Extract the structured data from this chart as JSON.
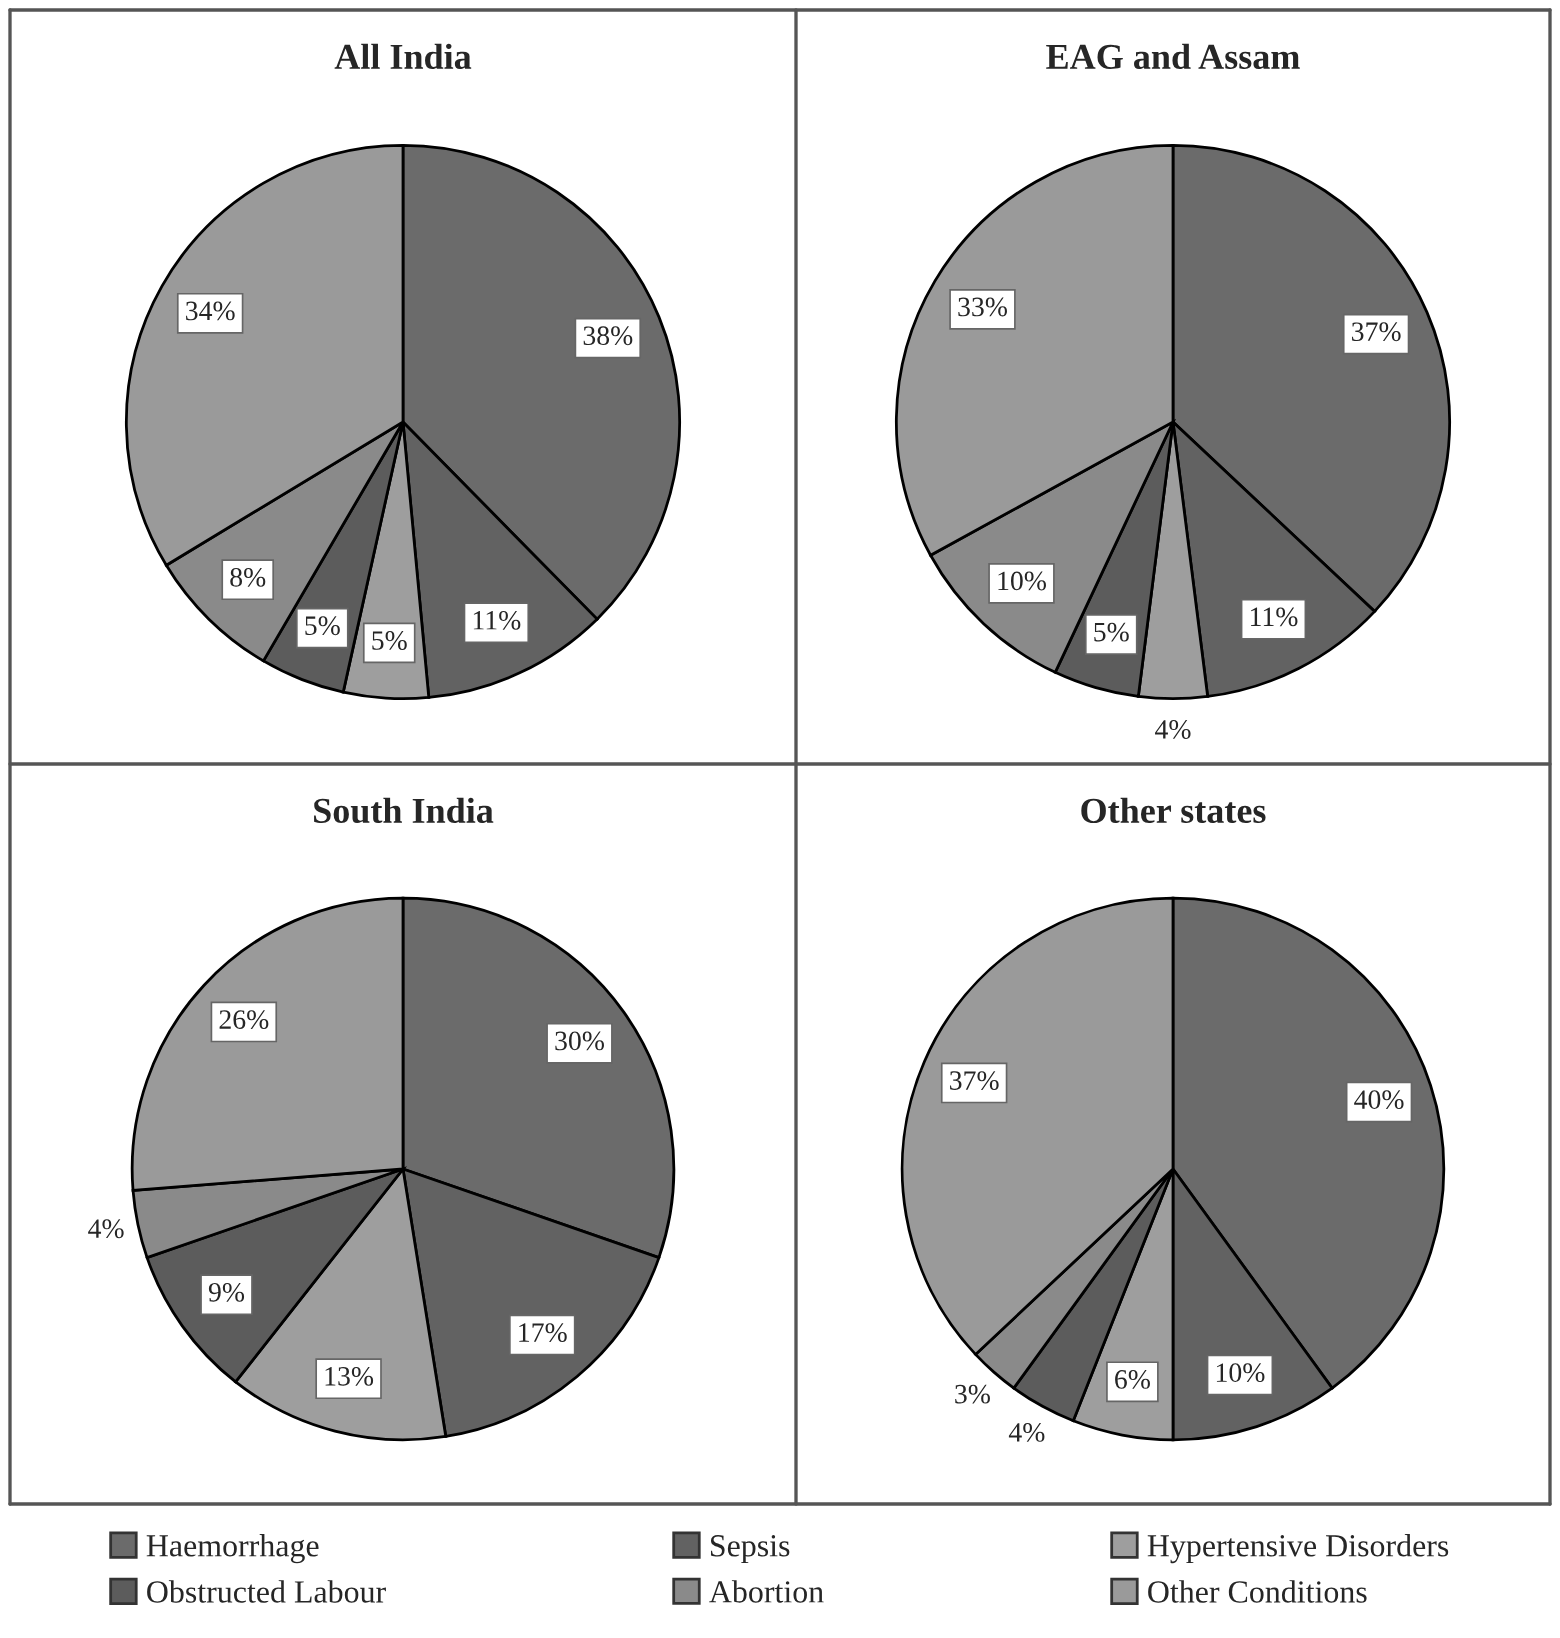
{
  "chart_data": [
    {
      "type": "pie",
      "title": "All India",
      "legend": "bottom",
      "categories": [
        "Haemorrhage",
        "Sepsis",
        "Hypertensive Disorders",
        "Obstructed Labour",
        "Abortion",
        "Other Conditions"
      ],
      "values": [
        38,
        11,
        5,
        5,
        8,
        34
      ],
      "value_labels": [
        "38%",
        "11%",
        "5%",
        "5%",
        "8%",
        "34%"
      ],
      "colors": [
        "#6b6b6b",
        "#626262",
        "#9e9e9e",
        "#5c5c5c",
        "#8a8a8a",
        "#9a9a9a"
      ]
    },
    {
      "type": "pie",
      "title": "EAG and Assam",
      "categories": [
        null,
        null,
        null,
        null,
        null,
        null
      ],
      "values": [
        37,
        11,
        4,
        5,
        10,
        33
      ],
      "value_labels": [
        "37%",
        "11%",
        "4%",
        "5%",
        "10%",
        "33%"
      ],
      "colors": [
        "#6b6b6b",
        "#626262",
        "#9e9e9e",
        "#5c5c5c",
        "#8a8a8a",
        "#9a9a9a"
      ]
    },
    {
      "type": "pie",
      "title": "South India",
      "categories": [
        null,
        null,
        null,
        null,
        null,
        null
      ],
      "values": [
        30,
        17,
        13,
        9,
        4,
        26
      ],
      "value_labels": [
        "30%",
        "17%",
        "13%",
        "9%",
        "4%",
        "26%"
      ],
      "colors": [
        "#6b6b6b",
        "#626262",
        "#9e9e9e",
        "#5c5c5c",
        "#8a8a8a",
        "#9a9a9a"
      ]
    },
    {
      "type": "pie",
      "title": "Other states",
      "categories": [
        null,
        null,
        null,
        null,
        null,
        null
      ],
      "values": [
        40,
        10,
        6,
        4,
        3,
        37
      ],
      "value_labels": [
        "40%",
        "10%",
        "6%",
        "4%",
        "3%",
        "37%"
      ],
      "colors": [
        "#6b6b6b",
        "#626262",
        "#9e9e9e",
        "#5c5c5c",
        "#8a8a8a",
        "#9a9a9a"
      ]
    }
  ]
}
